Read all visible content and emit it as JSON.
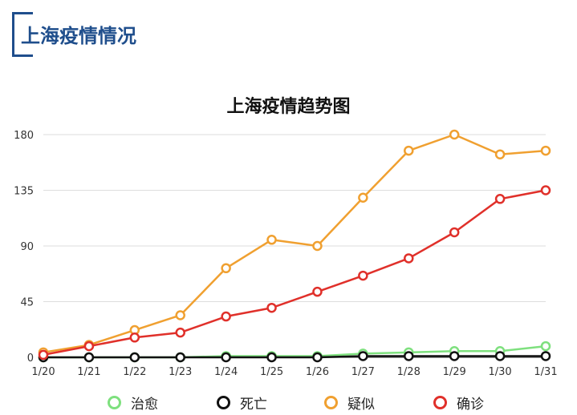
{
  "header": {
    "title": "上海疫情情况"
  },
  "chart_data": {
    "type": "line",
    "title": "上海疫情趋势图",
    "categories": [
      "1/20",
      "1/21",
      "1/22",
      "1/23",
      "1/24",
      "1/25",
      "1/26",
      "1/27",
      "1/28",
      "1/29",
      "1/30",
      "1/31"
    ],
    "ylim": [
      0,
      180
    ],
    "yticks": [
      0,
      45,
      90,
      135,
      180
    ],
    "grid": true,
    "legend_position": "bottom",
    "series": [
      {
        "name": "治愈",
        "color": "#7ee07e",
        "values": [
          0,
          0,
          0,
          0,
          1,
          1,
          1,
          3,
          4,
          5,
          5,
          9
        ]
      },
      {
        "name": "死亡",
        "color": "#111111",
        "values": [
          0,
          0,
          0,
          0,
          0,
          0,
          0,
          1,
          1,
          1,
          1,
          1
        ]
      },
      {
        "name": "疑似",
        "color": "#f0a030",
        "values": [
          4,
          10,
          22,
          34,
          72,
          95,
          90,
          129,
          167,
          180,
          164,
          167
        ]
      },
      {
        "name": "确诊",
        "color": "#e0302a",
        "values": [
          2,
          9,
          16,
          20,
          33,
          40,
          53,
          66,
          80,
          101,
          128,
          135
        ]
      }
    ]
  }
}
